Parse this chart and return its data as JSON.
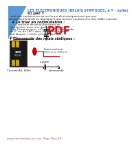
{
  "background": "#ffffff",
  "title_line1": "LES ÉLECTRONIQUES (RELAIS STATIQUES, à T - suite)",
  "title_line2": "n) par T",
  "title_color": "#4472c4",
  "title_fontsize": 3.5,
  "subtitle_fontsize": 4.0,
  "body1": "sont des contacteurs qu’on ferme électroniquement, par une",
  "body2": "simple commande en appliquant aux bornes voulues une très faible courant.",
  "body_fontsize": 3.0,
  "section1": "♦ Le triac en commutation :",
  "section1_fontsize": 3.5,
  "desc": [
    "       Constitué de deux thyristors en",
    "tête-bêche, avec une gachette commune,",
    "si on l'amorce avec un angle α de commande",
    "de 0° ou de 180° alors il sera soit passant",
    "soit bloqué, c’est le principe des RSE."
  ],
  "desc_fontsize": 3.0,
  "section2": "♦ Commande des relais statiques :",
  "section2_fontsize": 3.5,
  "label_phase": "Phase",
  "label_force": "Force motrice",
  "label_sub": "(Moteur ou RSA ext)",
  "label_vdc": "3-5VDC",
  "label_courant": "Courant Alt. 60Hz",
  "label_cmd": "Commande",
  "label_fontsize": 2.8,
  "footer": "www.electronique-pc.com  Page Num 46",
  "footer_fontsize": 2.8,
  "footer_color": "#c0392b",
  "tri_color": "#5b9bd5",
  "pdf_color": "#cc0000",
  "relay_face": "#1a1a1a",
  "relay_edge": "#444444",
  "connector_face": "#ddaa00",
  "red_wire": "#cc0000",
  "black_wire": "#000000"
}
